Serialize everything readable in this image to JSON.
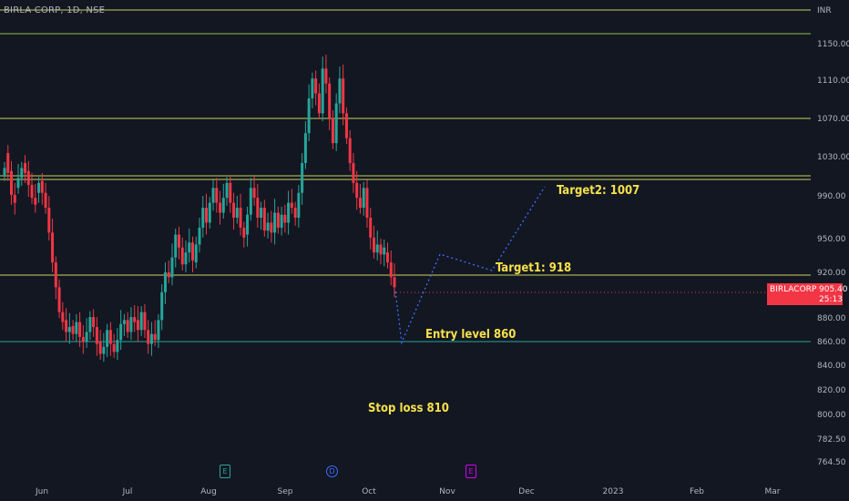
{
  "header": {
    "symbol": "BIRLA CORP, 1D, NSE"
  },
  "price_axis": {
    "currency": "INR",
    "ticks": [
      "1150.00",
      "1110.00",
      "1070.00",
      "1030.00",
      "990.00",
      "950.00",
      "920.00",
      "880.00",
      "860.00",
      "840.00",
      "820.00",
      "800.00",
      "782.50",
      "764.50"
    ]
  },
  "time_axis": {
    "ticks": [
      "Jun",
      "Jul",
      "Aug",
      "Sep",
      "Oct",
      "Nov",
      "Dec",
      "2023",
      "Feb",
      "Mar"
    ]
  },
  "price_label": {
    "symbol": "BIRLACORPN",
    "price": "905.40",
    "countdown": "25:13"
  },
  "annotations": {
    "target2": "Target2: 1007",
    "target1": "Target1: 918",
    "entry": "Entry level 860",
    "stop_loss": "Stop loss 810"
  },
  "events": {
    "earnings": "E",
    "dividend": "D",
    "split": "E"
  },
  "colors": {
    "background": "#131722",
    "up": "#26a69a",
    "down": "#f23645",
    "level_line": "#c8d35a",
    "entry_line": "#26a69a",
    "projection": "#3d6dff",
    "annotation": "#f7e14a"
  },
  "chart_data": {
    "type": "candlestick",
    "symbol": "BIRLA CORP",
    "interval": "1D",
    "exchange": "NSE",
    "currency": "INR",
    "x_ticks": [
      "Jun",
      "Jul",
      "Aug",
      "Sep",
      "Oct",
      "Nov",
      "Dec",
      "2023",
      "Feb",
      "Mar"
    ],
    "y_ticks": [
      1150,
      1110,
      1070,
      1030,
      990,
      950,
      920,
      880,
      860,
      840,
      820,
      800,
      782.5,
      764.5
    ],
    "last_price": 905.4,
    "horizontal_levels": [
      1197,
      1160,
      1070,
      1011,
      1007,
      918,
      860
    ],
    "projection_path": [
      [
        "Oct-10",
        905
      ],
      [
        "Oct-13",
        860
      ],
      [
        "Oct-31",
        938
      ],
      [
        "Nov-24",
        918
      ],
      [
        "Dec-07",
        1002
      ]
    ],
    "candles_close_approx": [
      [
        1018,
        1025
      ],
      [
        1040,
        1020
      ],
      [
        1022,
        998
      ],
      [
        998,
        990
      ],
      [
        1005,
        1015
      ],
      [
        1015,
        1025
      ],
      [
        1030,
        1020
      ],
      [
        1022,
        1008
      ],
      [
        1008,
        995
      ],
      [
        995,
        988
      ],
      [
        1000,
        1010
      ],
      [
        1012,
        1000
      ],
      [
        1000,
        985
      ],
      [
        985,
        960
      ],
      [
        960,
        930
      ],
      [
        930,
        905
      ],
      [
        905,
        880
      ],
      [
        880,
        870
      ],
      [
        872,
        860
      ],
      [
        860,
        865
      ],
      [
        866,
        858
      ],
      [
        858,
        870
      ],
      [
        870,
        855
      ],
      [
        855,
        850
      ],
      [
        850,
        860
      ],
      [
        860,
        875
      ],
      [
        875,
        865
      ],
      [
        865,
        848
      ],
      [
        850,
        838
      ],
      [
        838,
        845
      ],
      [
        845,
        862
      ],
      [
        862,
        848
      ],
      [
        848,
        840
      ],
      [
        840,
        852
      ],
      [
        852,
        868
      ],
      [
        868,
        872
      ],
      [
        872,
        860
      ],
      [
        860,
        875
      ],
      [
        875,
        870
      ],
      [
        872,
        862
      ],
      [
        862,
        880
      ],
      [
        880,
        862
      ],
      [
        862,
        848
      ],
      [
        848,
        858
      ],
      [
        858,
        852
      ],
      [
        852,
        872
      ],
      [
        872,
        900
      ],
      [
        900,
        920
      ],
      [
        920,
        915
      ],
      [
        915,
        935
      ],
      [
        935,
        958
      ],
      [
        958,
        945
      ],
      [
        945,
        928
      ],
      [
        928,
        940
      ],
      [
        940,
        950
      ],
      [
        950,
        932
      ],
      [
        930,
        948
      ],
      [
        948,
        965
      ],
      [
        965,
        985
      ],
      [
        985,
        970
      ],
      [
        970,
        990
      ],
      [
        990,
        1005
      ],
      [
        1005,
        990
      ],
      [
        990,
        980
      ],
      [
        980,
        995
      ],
      [
        995,
        1010
      ],
      [
        1010,
        990
      ],
      [
        990,
        975
      ],
      [
        975,
        985
      ],
      [
        985,
        965
      ],
      [
        965,
        955
      ],
      [
        958,
        978
      ],
      [
        978,
        1005
      ],
      [
        1005,
        995
      ],
      [
        995,
        975
      ],
      [
        975,
        985
      ],
      [
        985,
        962
      ],
      [
        962,
        970
      ],
      [
        970,
        960
      ],
      [
        960,
        980
      ],
      [
        980,
        965
      ],
      [
        965,
        978
      ],
      [
        978,
        970
      ],
      [
        970,
        990
      ],
      [
        990,
        985
      ],
      [
        985,
        975
      ],
      [
        975,
        1000
      ],
      [
        1000,
        1030
      ],
      [
        1030,
        1060
      ],
      [
        1060,
        1095
      ],
      [
        1095,
        1115
      ],
      [
        1115,
        1100
      ],
      [
        1100,
        1080
      ],
      [
        1080,
        1125
      ],
      [
        1125,
        1110
      ],
      [
        1110,
        1075
      ],
      [
        1075,
        1050
      ],
      [
        1050,
        1090
      ],
      [
        1090,
        1115
      ],
      [
        1115,
        1080
      ],
      [
        1080,
        1055
      ],
      [
        1055,
        1030
      ],
      [
        1030,
        1010
      ],
      [
        1010,
        995
      ],
      [
        995,
        985
      ],
      [
        985,
        1005
      ],
      [
        1005,
        975
      ],
      [
        975,
        955
      ],
      [
        955,
        940
      ],
      [
        940,
        948
      ],
      [
        948,
        938
      ],
      [
        938,
        945
      ],
      [
        940,
        930
      ],
      [
        930,
        915
      ],
      [
        915,
        905
      ]
    ]
  }
}
